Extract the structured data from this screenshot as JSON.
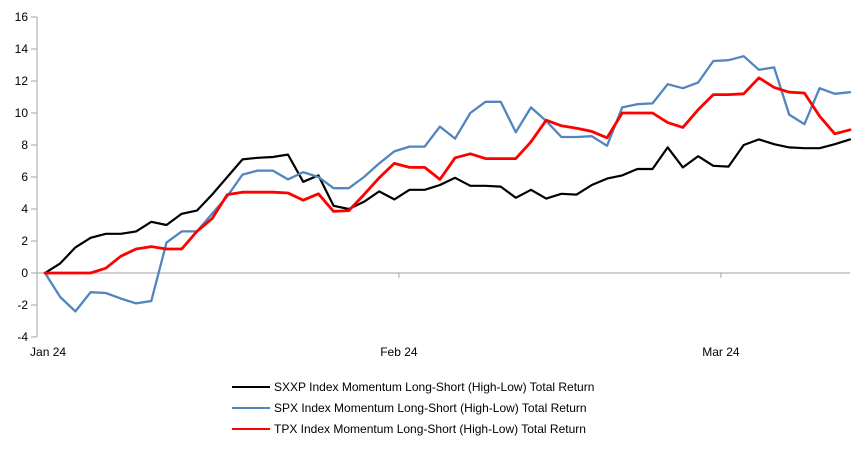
{
  "chart_data": {
    "type": "line",
    "title": "",
    "xlabel": "",
    "ylabel": "",
    "grid": "zero-line-only",
    "legend_position": "bottom-left",
    "axis_color": "#A6A6A6",
    "zero_line_color": "#A0A0A0",
    "x": [
      0,
      1,
      2,
      3,
      4,
      5,
      6,
      7,
      8,
      9,
      10,
      11,
      12,
      13,
      14,
      15,
      16,
      17,
      18,
      19,
      20,
      21,
      22,
      23,
      24,
      25,
      26,
      27,
      28,
      29,
      30,
      31,
      32,
      33,
      34,
      35,
      36,
      37,
      38,
      39,
      40,
      41,
      42,
      43,
      44,
      45,
      46,
      47,
      48,
      49,
      50,
      51,
      52,
      53
    ],
    "x_axis": {
      "tick_labels": [
        "Jan 24",
        "Feb 24",
        "Mar 24"
      ],
      "tick_positions": [
        0.2,
        23.3,
        44.5
      ]
    },
    "y_axis": {
      "ticks": [
        16,
        14,
        12,
        10,
        8,
        6,
        4,
        2,
        0,
        -2,
        -4
      ],
      "range": [
        -4,
        16
      ]
    },
    "series": [
      {
        "name": "SXXP Index Momentum Long-Short (High-Low) Total Return",
        "color": "#000000",
        "values": [
          0,
          0.6,
          1.6,
          2.2,
          2.45,
          2.45,
          2.6,
          3.2,
          3.0,
          3.7,
          3.9,
          4.9,
          6.0,
          7.1,
          7.2,
          7.25,
          7.4,
          5.7,
          6.1,
          4.2,
          4.0,
          4.45,
          5.1,
          4.6,
          5.2,
          5.2,
          5.5,
          5.95,
          5.45,
          5.45,
          5.4,
          4.7,
          5.2,
          4.65,
          4.95,
          4.9,
          5.5,
          5.9,
          6.1,
          6.5,
          6.5,
          7.85,
          6.6,
          7.3,
          6.7,
          6.65,
          8.0,
          8.35,
          8.05,
          7.85,
          7.8,
          7.8,
          8.05,
          8.35
        ]
      },
      {
        "name": "SPX Index Momentum Long-Short (High-Low) Total Return",
        "color": "#5185BE",
        "values": [
          0,
          -1.5,
          -2.4,
          -1.2,
          -1.25,
          -1.6,
          -1.9,
          -1.75,
          1.9,
          2.6,
          2.6,
          3.7,
          4.8,
          6.15,
          6.4,
          6.4,
          5.85,
          6.3,
          6.0,
          5.3,
          5.3,
          6.0,
          6.85,
          7.6,
          7.9,
          7.9,
          9.15,
          8.4,
          10.0,
          10.7,
          10.7,
          8.8,
          10.35,
          9.5,
          8.5,
          8.5,
          8.55,
          7.95,
          10.35,
          10.55,
          10.6,
          11.8,
          11.55,
          11.9,
          13.25,
          13.3,
          13.55,
          12.7,
          12.85,
          9.9,
          9.3,
          11.55,
          11.2,
          11.3
        ]
      },
      {
        "name": "TPX Index Momentum Long-Short (High-Low) Total Return",
        "color": "#FF0000",
        "values": [
          0,
          0,
          0,
          0,
          0.3,
          1.05,
          1.5,
          1.65,
          1.5,
          1.5,
          2.6,
          3.4,
          4.9,
          5.05,
          5.05,
          5.05,
          5.0,
          4.55,
          4.95,
          3.85,
          3.9,
          4.9,
          5.95,
          6.85,
          6.6,
          6.6,
          5.85,
          7.2,
          7.45,
          7.15,
          7.15,
          7.15,
          8.2,
          9.55,
          9.2,
          9.05,
          8.85,
          8.45,
          10.0,
          10.0,
          10.0,
          9.4,
          9.1,
          10.2,
          11.15,
          11.15,
          11.2,
          12.2,
          11.6,
          11.3,
          11.25,
          9.8,
          8.7,
          8.95
        ]
      }
    ]
  }
}
